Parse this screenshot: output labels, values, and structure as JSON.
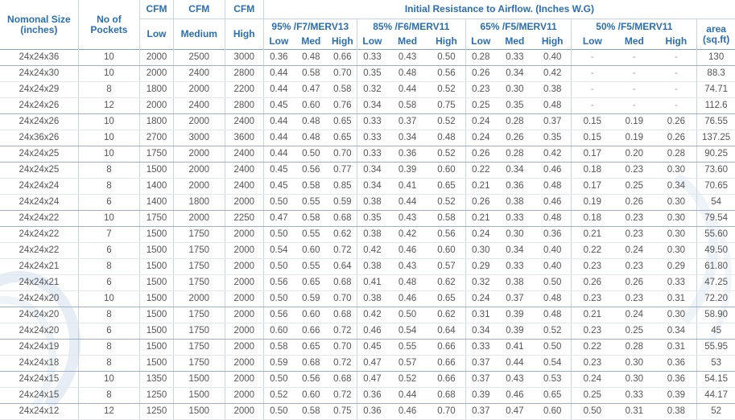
{
  "headers": {
    "size": "Nomonal Size (inches)",
    "pockets": "No of Pockets",
    "cfm": "CFM",
    "cfm_levels": [
      "Low",
      "Medium",
      "High"
    ],
    "resistance_title": "Initial Resistance to Airflow. (Inches W.G)",
    "groups": [
      "95% /F7/MERV13",
      "85% /F6/MERV11",
      "65% /F5/MERV11",
      "50% /F5/MERV11"
    ],
    "sub_levels": [
      "Low",
      "Med",
      "High"
    ],
    "area": "area (sq.ft)"
  },
  "rows": [
    [
      "24x24x36",
      "10",
      "2000",
      "2500",
      "3000",
      "0.36",
      "0.48",
      "0.66",
      "0.33",
      "0.43",
      "0.50",
      "0.28",
      "0.33",
      "0.40",
      "-",
      "-",
      "-",
      "130"
    ],
    [
      "24x24x30",
      "10",
      "2000",
      "2400",
      "2800",
      "0.44",
      "0.58",
      "0.70",
      "0.35",
      "0.48",
      "0.56",
      "0.26",
      "0.34",
      "0.42",
      "-",
      "-",
      "-",
      "88.3"
    ],
    [
      "24x24x29",
      "8",
      "1800",
      "2000",
      "2200",
      "0.44",
      "0.47",
      "0.58",
      "0.32",
      "0.44",
      "0.52",
      "0.23",
      "0.30",
      "0.38",
      "-",
      "-",
      "-",
      "74.71"
    ],
    [
      "24x24x26",
      "12",
      "2000",
      "2400",
      "2800",
      "0.45",
      "0.60",
      "0.76",
      "0.34",
      "0.58",
      "0.75",
      "0.25",
      "0.35",
      "0.48",
      "-",
      "-",
      "-",
      "112.6"
    ],
    [
      "24x24x26",
      "10",
      "1800",
      "2000",
      "2400",
      "0.44",
      "0.48",
      "0.65",
      "0.33",
      "0.37",
      "0.52",
      "0.24",
      "0.28",
      "0.37",
      "0.15",
      "0.19",
      "0.26",
      "76.55"
    ],
    [
      "24x36x26",
      "10",
      "2700",
      "3000",
      "3600",
      "0.44",
      "0.48",
      "0.65",
      "0.33",
      "0.34",
      "0.48",
      "0.24",
      "0.26",
      "0.35",
      "0.15",
      "0.19",
      "0.26",
      "137.25"
    ],
    [
      "24x24x25",
      "10",
      "1750",
      "2000",
      "2400",
      "0.44",
      "0.50",
      "0.70",
      "0.33",
      "0.36",
      "0.52",
      "0.26",
      "0.28",
      "0.42",
      "0.17",
      "0.20",
      "0.28",
      "90.25"
    ],
    [
      "24x24x25",
      "8",
      "1500",
      "2000",
      "2400",
      "0.45",
      "0.56",
      "0.77",
      "0.34",
      "0.39",
      "0.60",
      "0.22",
      "0.34",
      "0.46",
      "0.18",
      "0.23",
      "0.30",
      "73.60"
    ],
    [
      "24x24x24",
      "8",
      "1400",
      "2000",
      "2400",
      "0.45",
      "0.58",
      "0.85",
      "0.34",
      "0.41",
      "0.65",
      "0.21",
      "0.36",
      "0.48",
      "0.17",
      "0.25",
      "0.34",
      "70.65"
    ],
    [
      "24x24x24",
      "6",
      "1400",
      "1800",
      "2000",
      "0.50",
      "0.55",
      "0.59",
      "0.38",
      "0.44",
      "0.52",
      "0.26",
      "0.38",
      "0.46",
      "0.19",
      "0.26",
      "0.30",
      "54"
    ],
    [
      "24x24x22",
      "10",
      "1750",
      "2000",
      "2250",
      "0.47",
      "0.58",
      "0.68",
      "0.35",
      "0.43",
      "0.58",
      "0.21",
      "0.33",
      "0.48",
      "0.18",
      "0.23",
      "0.30",
      "79.54"
    ],
    [
      "24x24x22",
      "7",
      "1500",
      "1750",
      "2000",
      "0.50",
      "0.55",
      "0.62",
      "0.38",
      "0.42",
      "0.56",
      "0.24",
      "0.30",
      "0.36",
      "0.21",
      "0.23",
      "0.30",
      "55.60"
    ],
    [
      "24x24x22",
      "6",
      "1500",
      "1750",
      "2000",
      "0.54",
      "0.60",
      "0.72",
      "0.42",
      "0.46",
      "0.60",
      "0.30",
      "0.34",
      "0.40",
      "0.22",
      "0.24",
      "0.30",
      "49.50"
    ],
    [
      "24x24x21",
      "8",
      "1500",
      "1750",
      "2000",
      "0.50",
      "0.55",
      "0.64",
      "0.38",
      "0.43",
      "0.57",
      "0.29",
      "0.33",
      "0.40",
      "0.23",
      "0.23",
      "0.29",
      "61.80"
    ],
    [
      "24x24x21",
      "6",
      "1500",
      "1750",
      "2000",
      "0.56",
      "0.65",
      "0.68",
      "0.41",
      "0.48",
      "0.62",
      "0.32",
      "0.38",
      "0.50",
      "0.26",
      "0.26",
      "0.33",
      "47.25"
    ],
    [
      "24x24x20",
      "10",
      "1500",
      "2000",
      "2000",
      "0.50",
      "0.59",
      "0.70",
      "0.38",
      "0.46",
      "0.65",
      "0.24",
      "0.37",
      "0.48",
      "0.23",
      "0.23",
      "0.31",
      "72.20"
    ],
    [
      "24x24x20",
      "8",
      "1500",
      "1750",
      "2000",
      "0.56",
      "0.60",
      "0.68",
      "0.42",
      "0.50",
      "0.62",
      "0.31",
      "0.39",
      "0.48",
      "0.21",
      "0.24",
      "0.30",
      "58.90"
    ],
    [
      "24x24x20",
      "6",
      "1500",
      "1750",
      "2000",
      "0.60",
      "0.66",
      "0.72",
      "0.46",
      "0.54",
      "0.64",
      "0.34",
      "0.39",
      "0.52",
      "0.23",
      "0.25",
      "0.34",
      "45"
    ],
    [
      "24x24x19",
      "8",
      "1500",
      "1750",
      "2000",
      "0.58",
      "0.65",
      "0.70",
      "0.45",
      "0.55",
      "0.66",
      "0.33",
      "0.41",
      "0.50",
      "0.22",
      "0.28",
      "0.31",
      "55.95"
    ],
    [
      "24x24x18",
      "8",
      "1500",
      "1750",
      "2000",
      "0.59",
      "0.68",
      "0.72",
      "0.47",
      "0.57",
      "0.66",
      "0.37",
      "0.44",
      "0.54",
      "0.23",
      "0.30",
      "0.36",
      "53"
    ],
    [
      "24x24x15",
      "10",
      "1350",
      "1500",
      "2000",
      "0.50",
      "0.56",
      "0.68",
      "0.47",
      "0.52",
      "0.66",
      "0.37",
      "0.43",
      "0.53",
      "0.24",
      "0.30",
      "0.36",
      "54.15"
    ],
    [
      "24x24x15",
      "8",
      "1250",
      "1500",
      "2000",
      "0.52",
      "0.60",
      "0.72",
      "0.36",
      "0.44",
      "0.68",
      "0.39",
      "0.46",
      "0.65",
      "0.25",
      "0.33",
      "0.39",
      "44.17"
    ],
    [
      "24x24x12",
      "12",
      "1250",
      "1500",
      "2000",
      "0.50",
      "0.58",
      "0.75",
      "0.36",
      "0.46",
      "0.70",
      "0.37",
      "0.47",
      "0.60",
      "0.50",
      "0.31",
      "0.38",
      "52"
    ]
  ]
}
